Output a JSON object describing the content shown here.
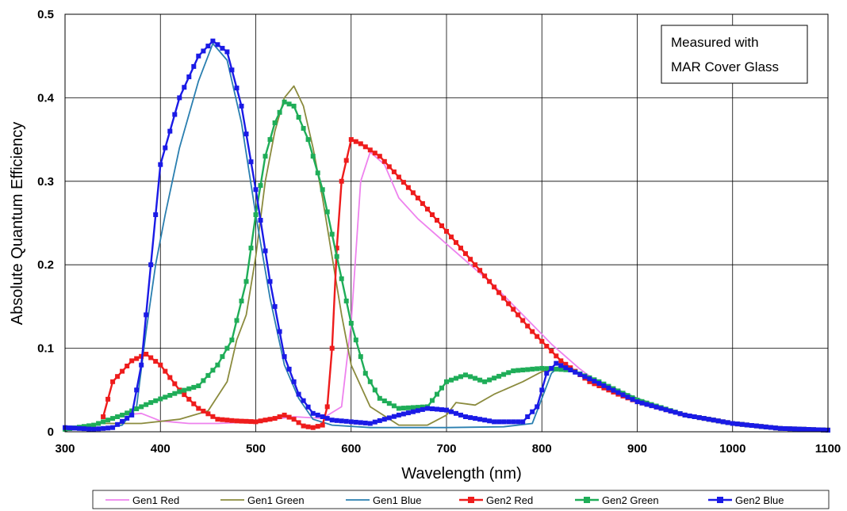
{
  "chart_data": {
    "type": "line",
    "xlabel": "Wavelength (nm)",
    "ylabel": "Absolute Quantum Efficiency",
    "xlim": [
      300,
      1100
    ],
    "ylim": [
      0,
      0.5
    ],
    "x_ticks": [
      "300",
      "400",
      "500",
      "600",
      "700",
      "800",
      "900",
      "1000",
      "1100"
    ],
    "y_ticks": [
      "0",
      "0.1",
      "0.2",
      "0.3",
      "0.4",
      "0.5"
    ],
    "grid": true,
    "legend_position": "bottom",
    "annotation": [
      "Measured with",
      "MAR Cover Glass"
    ],
    "series": [
      {
        "name": "Gen1 Red",
        "color": "#ee82ee",
        "marker": false,
        "points": [
          [
            360,
            0.02
          ],
          [
            380,
            0.022
          ],
          [
            400,
            0.013
          ],
          [
            430,
            0.01
          ],
          [
            460,
            0.01
          ],
          [
            500,
            0.012
          ],
          [
            540,
            0.018
          ],
          [
            570,
            0.016
          ],
          [
            590,
            0.03
          ],
          [
            600,
            0.13
          ],
          [
            610,
            0.3
          ],
          [
            620,
            0.335
          ],
          [
            635,
            0.32
          ],
          [
            650,
            0.28
          ],
          [
            670,
            0.255
          ],
          [
            700,
            0.225
          ],
          [
            720,
            0.205
          ],
          [
            750,
            0.175
          ],
          [
            780,
            0.14
          ],
          [
            810,
            0.105
          ],
          [
            840,
            0.075
          ],
          [
            860,
            0.058
          ],
          [
            880,
            0.046
          ],
          [
            900,
            0.036
          ],
          [
            950,
            0.02
          ],
          [
            1000,
            0.01
          ],
          [
            1050,
            0.004
          ],
          [
            1100,
            0.002
          ]
        ]
      },
      {
        "name": "Gen1 Green",
        "color": "#8b8b3e",
        "marker": false,
        "points": [
          [
            340,
            0.01
          ],
          [
            380,
            0.01
          ],
          [
            420,
            0.015
          ],
          [
            450,
            0.025
          ],
          [
            470,
            0.06
          ],
          [
            480,
            0.11
          ],
          [
            490,
            0.14
          ],
          [
            500,
            0.21
          ],
          [
            510,
            0.3
          ],
          [
            520,
            0.36
          ],
          [
            530,
            0.4
          ],
          [
            540,
            0.414
          ],
          [
            550,
            0.39
          ],
          [
            560,
            0.34
          ],
          [
            570,
            0.28
          ],
          [
            580,
            0.21
          ],
          [
            590,
            0.14
          ],
          [
            600,
            0.08
          ],
          [
            620,
            0.03
          ],
          [
            650,
            0.008
          ],
          [
            680,
            0.008
          ],
          [
            700,
            0.02
          ],
          [
            710,
            0.035
          ],
          [
            730,
            0.032
          ],
          [
            750,
            0.045
          ],
          [
            780,
            0.06
          ],
          [
            800,
            0.072
          ],
          [
            820,
            0.078
          ],
          [
            850,
            0.065
          ],
          [
            900,
            0.04
          ],
          [
            950,
            0.02
          ],
          [
            1000,
            0.01
          ],
          [
            1050,
            0.004
          ],
          [
            1100,
            0.002
          ]
        ]
      },
      {
        "name": "Gen1 Blue",
        "color": "#2a7fb0",
        "marker": false,
        "points": [
          [
            300,
            0.004
          ],
          [
            340,
            0.004
          ],
          [
            360,
            0.008
          ],
          [
            375,
            0.03
          ],
          [
            385,
            0.12
          ],
          [
            395,
            0.2
          ],
          [
            405,
            0.26
          ],
          [
            420,
            0.34
          ],
          [
            440,
            0.42
          ],
          [
            455,
            0.465
          ],
          [
            470,
            0.445
          ],
          [
            485,
            0.37
          ],
          [
            500,
            0.26
          ],
          [
            515,
            0.16
          ],
          [
            530,
            0.08
          ],
          [
            545,
            0.04
          ],
          [
            560,
            0.015
          ],
          [
            580,
            0.008
          ],
          [
            620,
            0.005
          ],
          [
            700,
            0.005
          ],
          [
            760,
            0.006
          ],
          [
            790,
            0.01
          ],
          [
            800,
            0.04
          ],
          [
            810,
            0.07
          ],
          [
            820,
            0.08
          ],
          [
            850,
            0.065
          ],
          [
            900,
            0.04
          ],
          [
            950,
            0.02
          ],
          [
            1000,
            0.01
          ],
          [
            1050,
            0.004
          ],
          [
            1100,
            0.002
          ]
        ]
      },
      {
        "name": "Gen2 Red",
        "color": "#ee1c1c",
        "marker": true,
        "points": [
          [
            340,
            0.018
          ],
          [
            350,
            0.06
          ],
          [
            370,
            0.085
          ],
          [
            385,
            0.093
          ],
          [
            400,
            0.08
          ],
          [
            420,
            0.05
          ],
          [
            440,
            0.028
          ],
          [
            460,
            0.015
          ],
          [
            480,
            0.013
          ],
          [
            500,
            0.012
          ],
          [
            520,
            0.016
          ],
          [
            530,
            0.02
          ],
          [
            540,
            0.015
          ],
          [
            550,
            0.007
          ],
          [
            560,
            0.005
          ],
          [
            570,
            0.008
          ],
          [
            575,
            0.03
          ],
          [
            580,
            0.1
          ],
          [
            585,
            0.22
          ],
          [
            590,
            0.3
          ],
          [
            600,
            0.35
          ],
          [
            610,
            0.345
          ],
          [
            630,
            0.33
          ],
          [
            650,
            0.305
          ],
          [
            670,
            0.28
          ],
          [
            700,
            0.24
          ],
          [
            730,
            0.2
          ],
          [
            760,
            0.16
          ],
          [
            790,
            0.12
          ],
          [
            820,
            0.085
          ],
          [
            850,
            0.06
          ],
          [
            880,
            0.045
          ],
          [
            900,
            0.036
          ],
          [
            950,
            0.02
          ],
          [
            1000,
            0.01
          ],
          [
            1050,
            0.004
          ],
          [
            1100,
            0.002
          ]
        ]
      },
      {
        "name": "Gen2 Green",
        "color": "#1fad58",
        "marker": true,
        "points": [
          [
            300,
            0.003
          ],
          [
            330,
            0.008
          ],
          [
            360,
            0.02
          ],
          [
            390,
            0.035
          ],
          [
            420,
            0.048
          ],
          [
            440,
            0.055
          ],
          [
            460,
            0.08
          ],
          [
            475,
            0.11
          ],
          [
            490,
            0.18
          ],
          [
            500,
            0.26
          ],
          [
            510,
            0.33
          ],
          [
            520,
            0.37
          ],
          [
            530,
            0.395
          ],
          [
            540,
            0.39
          ],
          [
            555,
            0.35
          ],
          [
            570,
            0.29
          ],
          [
            585,
            0.21
          ],
          [
            600,
            0.13
          ],
          [
            615,
            0.07
          ],
          [
            630,
            0.04
          ],
          [
            650,
            0.028
          ],
          [
            680,
            0.03
          ],
          [
            700,
            0.06
          ],
          [
            720,
            0.068
          ],
          [
            740,
            0.06
          ],
          [
            770,
            0.073
          ],
          [
            800,
            0.076
          ],
          [
            830,
            0.074
          ],
          [
            860,
            0.06
          ],
          [
            900,
            0.038
          ],
          [
            950,
            0.02
          ],
          [
            1000,
            0.01
          ],
          [
            1050,
            0.004
          ],
          [
            1100,
            0.002
          ]
        ]
      },
      {
        "name": "Gen2 Blue",
        "color": "#1a1ae6",
        "marker": true,
        "points": [
          [
            300,
            0.005
          ],
          [
            330,
            0.003
          ],
          [
            350,
            0.005
          ],
          [
            370,
            0.02
          ],
          [
            380,
            0.08
          ],
          [
            390,
            0.2
          ],
          [
            400,
            0.32
          ],
          [
            420,
            0.4
          ],
          [
            440,
            0.45
          ],
          [
            455,
            0.468
          ],
          [
            470,
            0.455
          ],
          [
            485,
            0.39
          ],
          [
            500,
            0.29
          ],
          [
            515,
            0.18
          ],
          [
            530,
            0.09
          ],
          [
            545,
            0.045
          ],
          [
            560,
            0.022
          ],
          [
            580,
            0.014
          ],
          [
            620,
            0.01
          ],
          [
            650,
            0.02
          ],
          [
            680,
            0.028
          ],
          [
            700,
            0.026
          ],
          [
            720,
            0.018
          ],
          [
            750,
            0.012
          ],
          [
            780,
            0.012
          ],
          [
            795,
            0.03
          ],
          [
            805,
            0.07
          ],
          [
            815,
            0.082
          ],
          [
            830,
            0.074
          ],
          [
            860,
            0.058
          ],
          [
            900,
            0.036
          ],
          [
            950,
            0.02
          ],
          [
            1000,
            0.01
          ],
          [
            1050,
            0.004
          ],
          [
            1100,
            0.002
          ]
        ]
      }
    ]
  }
}
